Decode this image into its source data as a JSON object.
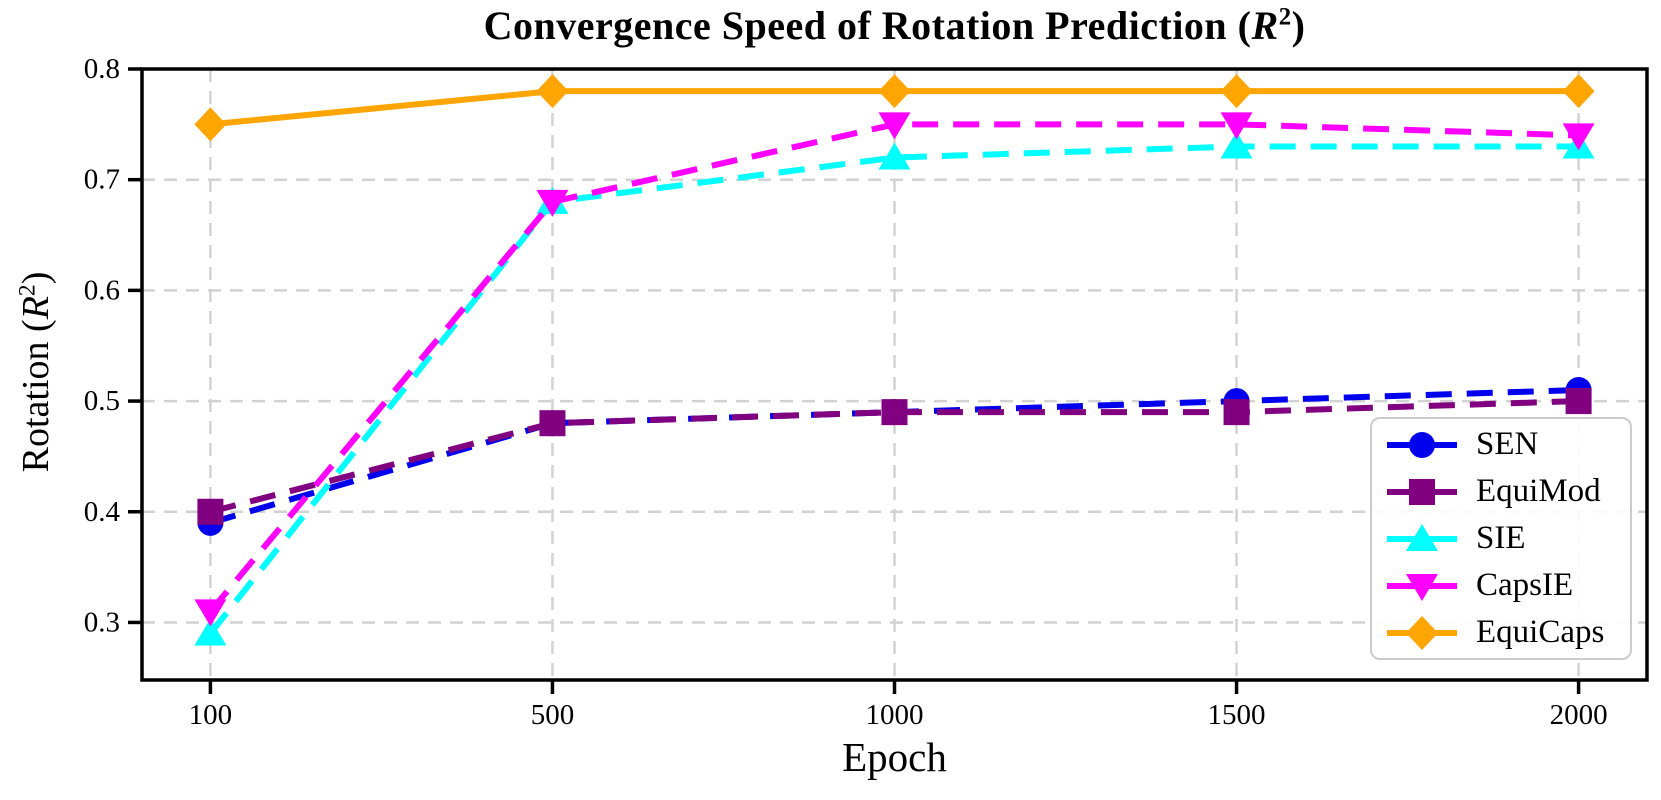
{
  "figure": {
    "title": {
      "prefix": "Convergence Speed of Rotation Prediction (",
      "var": "R",
      "exp": "2",
      "suffix": ")"
    },
    "xlabel": "Epoch",
    "ylabel": {
      "prefix": "Rotation (",
      "var": "R",
      "exp": "2",
      "suffix": ")"
    }
  },
  "chart_data": {
    "type": "line",
    "title": "Convergence Speed of Rotation Prediction (R^2)",
    "xlabel": "Epoch",
    "ylabel": "Rotation (R^2)",
    "x_categories": [
      "100",
      "500",
      "1000",
      "1500",
      "2000"
    ],
    "x_values": [
      100,
      500,
      1000,
      1500,
      2000
    ],
    "x_spacing": "categorical-even",
    "yticks": [
      0.3,
      0.4,
      0.5,
      0.6,
      0.7,
      0.8
    ],
    "ylim": [
      0.248,
      0.8
    ],
    "grid": true,
    "grid_style": "dashed",
    "grid_color": "#d2d2d2",
    "legend_position": "lower right",
    "series": [
      {
        "name": "SEN",
        "color": "#0000ee",
        "marker": "circle",
        "linestyle": "dashed",
        "values": [
          0.39,
          0.48,
          0.49,
          0.5,
          0.51
        ]
      },
      {
        "name": "EquiMod",
        "color": "#800080",
        "marker": "square",
        "linestyle": "dashed",
        "values": [
          0.4,
          0.48,
          0.49,
          0.49,
          0.5
        ]
      },
      {
        "name": "SIE",
        "color": "#00ffff",
        "marker": "triangle-up",
        "linestyle": "dashed",
        "values": [
          0.29,
          0.68,
          0.72,
          0.73,
          0.73
        ]
      },
      {
        "name": "CapsIE",
        "color": "#ff00ff",
        "marker": "triangle-down",
        "linestyle": "dashed",
        "values": [
          0.31,
          0.68,
          0.75,
          0.75,
          0.74
        ]
      },
      {
        "name": "EquiCaps",
        "color": "#ffa500",
        "marker": "diamond",
        "linestyle": "solid",
        "values": [
          0.75,
          0.78,
          0.78,
          0.78,
          0.78
        ]
      }
    ]
  }
}
